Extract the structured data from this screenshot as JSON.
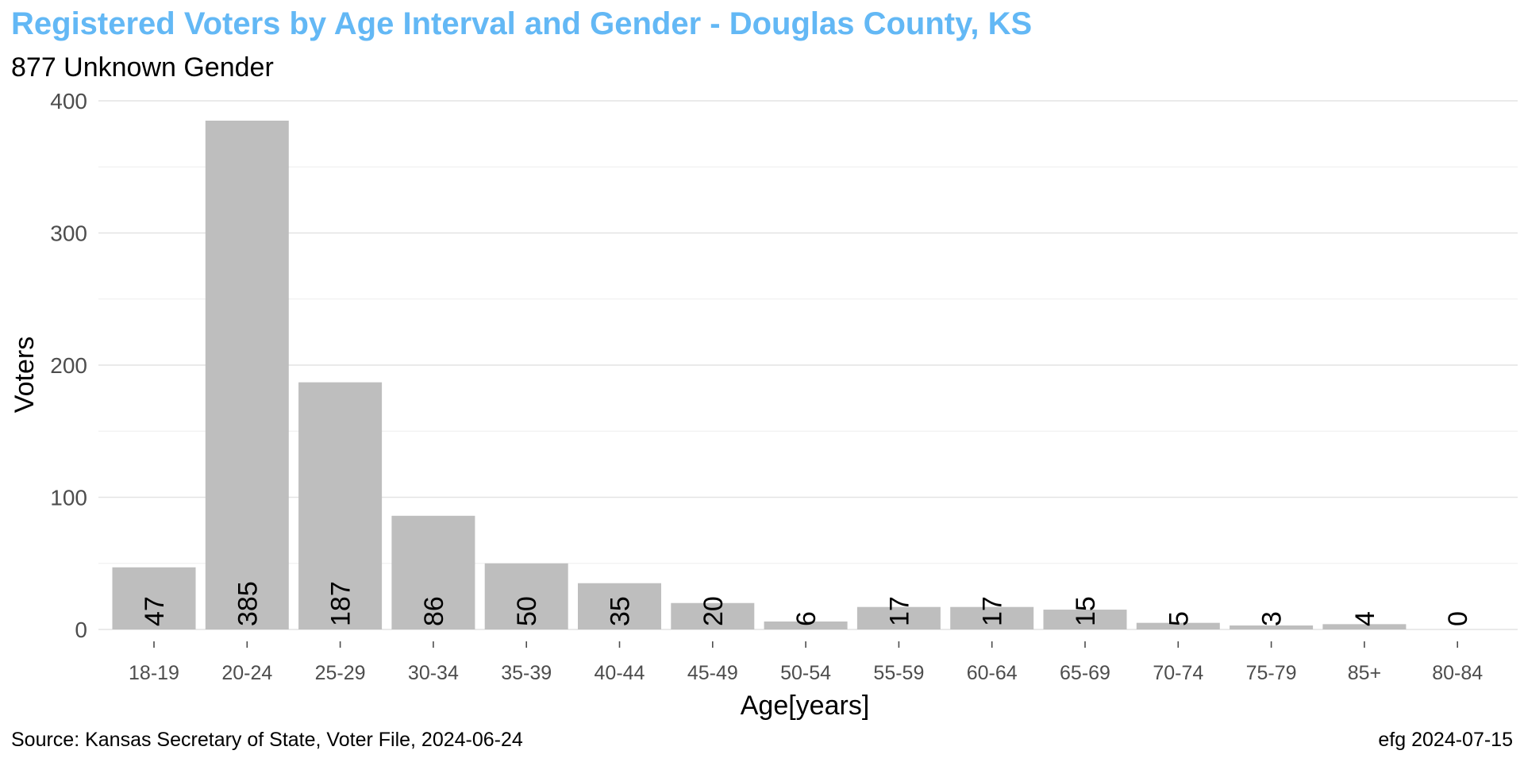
{
  "chart_data": {
    "type": "bar",
    "title": "Registered Voters by Age Interval and Gender - Douglas County, KS",
    "subtitle": "877 Unknown Gender",
    "xlabel": "Age[years]",
    "ylabel": "Voters",
    "categories": [
      "18-19",
      "20-24",
      "25-29",
      "30-34",
      "35-39",
      "40-44",
      "45-49",
      "50-54",
      "55-59",
      "60-64",
      "65-69",
      "70-74",
      "75-79",
      "85+",
      "80-84"
    ],
    "values": [
      47,
      385,
      187,
      86,
      50,
      35,
      20,
      6,
      17,
      17,
      15,
      5,
      3,
      4,
      0
    ],
    "ylim": [
      0,
      400
    ],
    "yticks": [
      0,
      100,
      200,
      300,
      400
    ],
    "grid": true,
    "bar_color": "#bebebe",
    "title_color": "#63b8f5",
    "data_labels": "rotated inside bars"
  },
  "caption_left": "Source:  Kansas Secretary of State, Voter File, 2024-06-24",
  "caption_right": "efg 2024-07-15"
}
